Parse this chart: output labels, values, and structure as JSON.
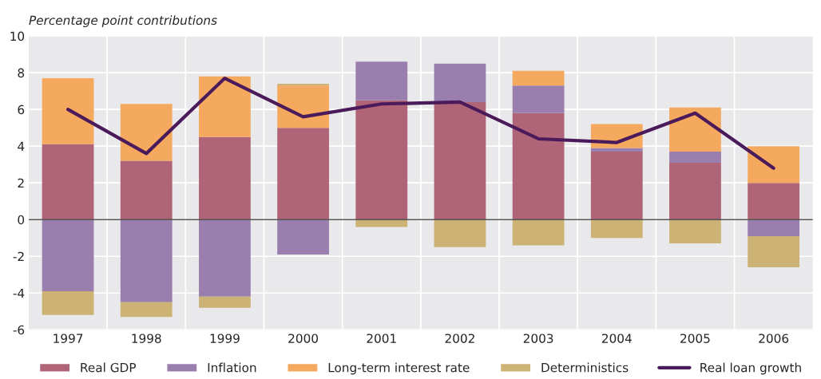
{
  "chart_data": {
    "type": "bar",
    "stacked": true,
    "ylabel": "Percentage point contributions",
    "categories": [
      "1997",
      "1998",
      "1999",
      "2000",
      "2001",
      "2002",
      "2003",
      "2004",
      "2005",
      "2006"
    ],
    "series": [
      {
        "name": "Real GDP",
        "color": "#b06477",
        "values": [
          4.1,
          3.2,
          4.5,
          5.0,
          6.5,
          6.4,
          5.8,
          3.7,
          3.1,
          2.0
        ]
      },
      {
        "name": "Inflation",
        "color": "#9a7fae",
        "values": [
          -3.9,
          -4.5,
          -4.2,
          -1.9,
          2.1,
          2.1,
          1.5,
          0.2,
          0.6,
          -0.9
        ]
      },
      {
        "name": "Long-term interest rate",
        "color": "#f5a95e",
        "values": [
          3.6,
          3.1,
          3.3,
          2.3,
          null,
          null,
          0.8,
          1.3,
          2.4,
          2.0
        ]
      },
      {
        "name": "Deterministics",
        "color": "#ccb274",
        "values": [
          -1.3,
          -0.8,
          -0.6,
          0.1,
          -0.4,
          -1.5,
          -1.4,
          -1.0,
          -1.3,
          -1.7
        ]
      },
      {
        "name": "Real loan growth",
        "type": "line",
        "color": "#4b1a5b",
        "values": [
          6.0,
          3.6,
          7.7,
          5.6,
          6.3,
          6.4,
          4.4,
          4.2,
          5.8,
          2.8
        ]
      }
    ],
    "ylim": [
      -6,
      10
    ],
    "yticks": [
      -6,
      -4,
      -2,
      0,
      2,
      4,
      6,
      8,
      10
    ],
    "ref_lines": [
      {
        "axis": "y",
        "value": 0,
        "color": "#555555"
      }
    ],
    "grid": true,
    "legend": "bottom",
    "marker": "none",
    "line_style": "solid"
  }
}
